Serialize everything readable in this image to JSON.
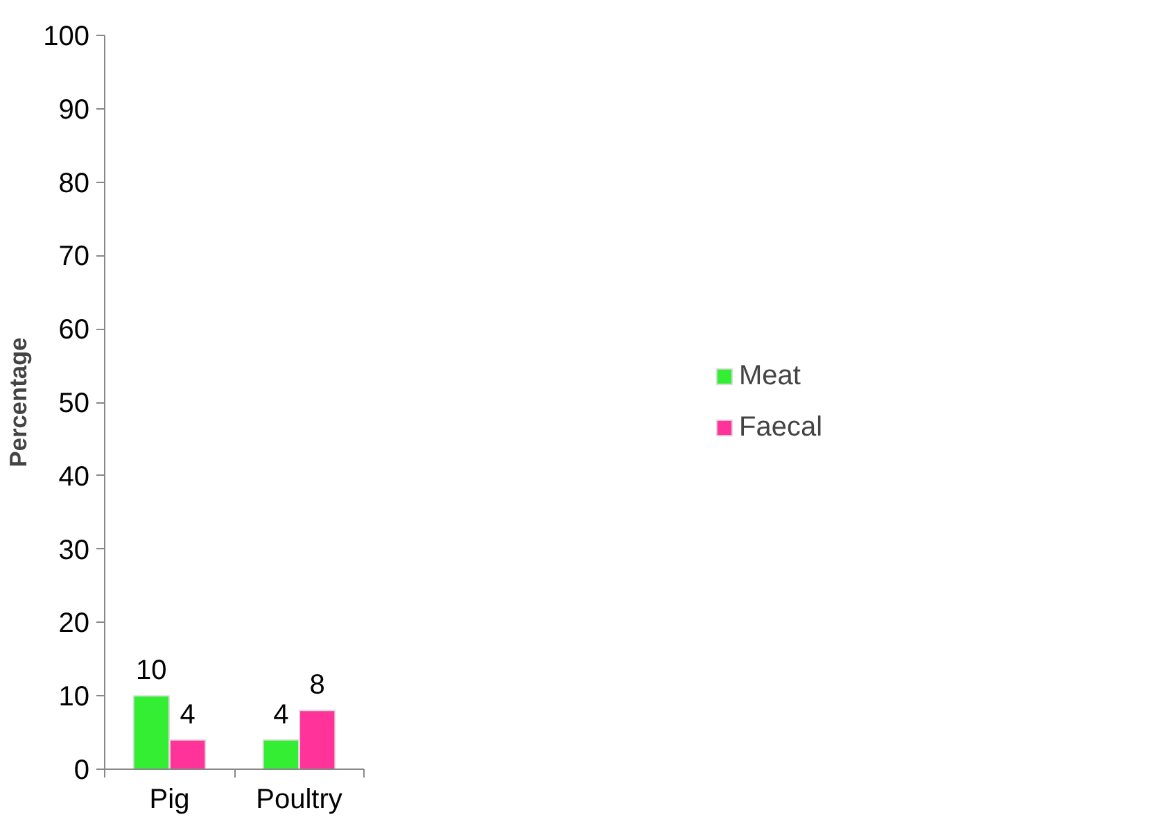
{
  "chart_data": {
    "type": "bar",
    "categories": [
      "Pig",
      "Poultry"
    ],
    "ylabel": "Percentage",
    "series": [
      {
        "name": "Meat",
        "color": "#33ee33",
        "values": [
          10,
          4
        ]
      },
      {
        "name": "Faecal",
        "color": "#ff3399",
        "values": [
          4,
          8
        ]
      }
    ],
    "ylim": [
      0,
      100
    ],
    "yticks": [
      0,
      10,
      20,
      30,
      40,
      50,
      60,
      70,
      80,
      90,
      100
    ],
    "grid": false,
    "legend": "right",
    "data_labels": true
  }
}
